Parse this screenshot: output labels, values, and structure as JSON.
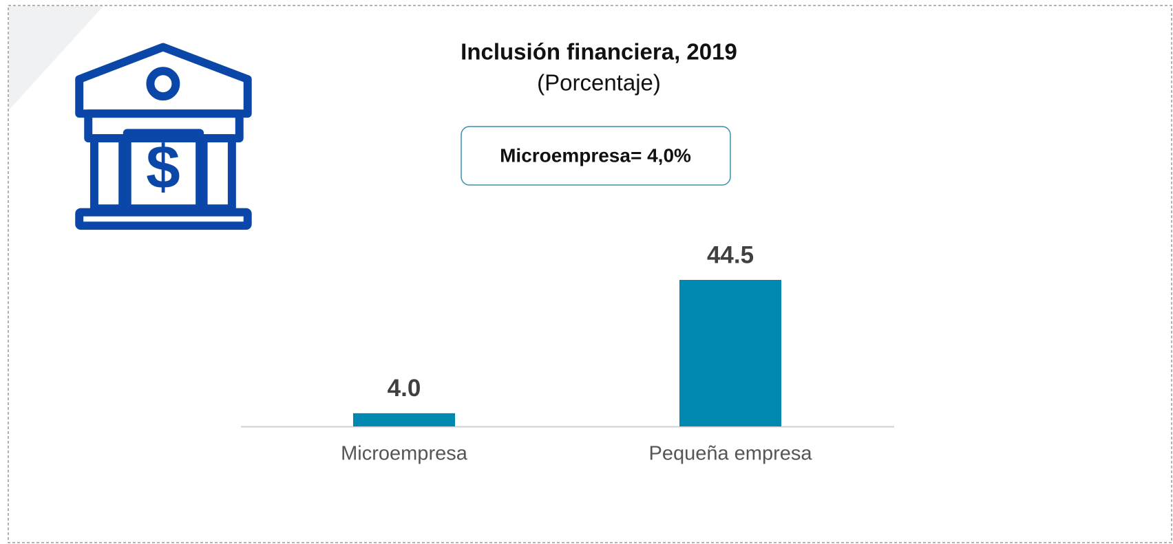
{
  "chart_data": {
    "type": "bar",
    "title": "Inclusión financiera, 2019",
    "subtitle": "(Porcentaje)",
    "annotation": "Microempresa= 4,0%",
    "categories": [
      "Microempresa",
      "Pequeña empresa"
    ],
    "values": [
      4.0,
      44.5
    ],
    "value_labels": [
      "4.0",
      "44.5"
    ],
    "color": "#0089b0"
  }
}
